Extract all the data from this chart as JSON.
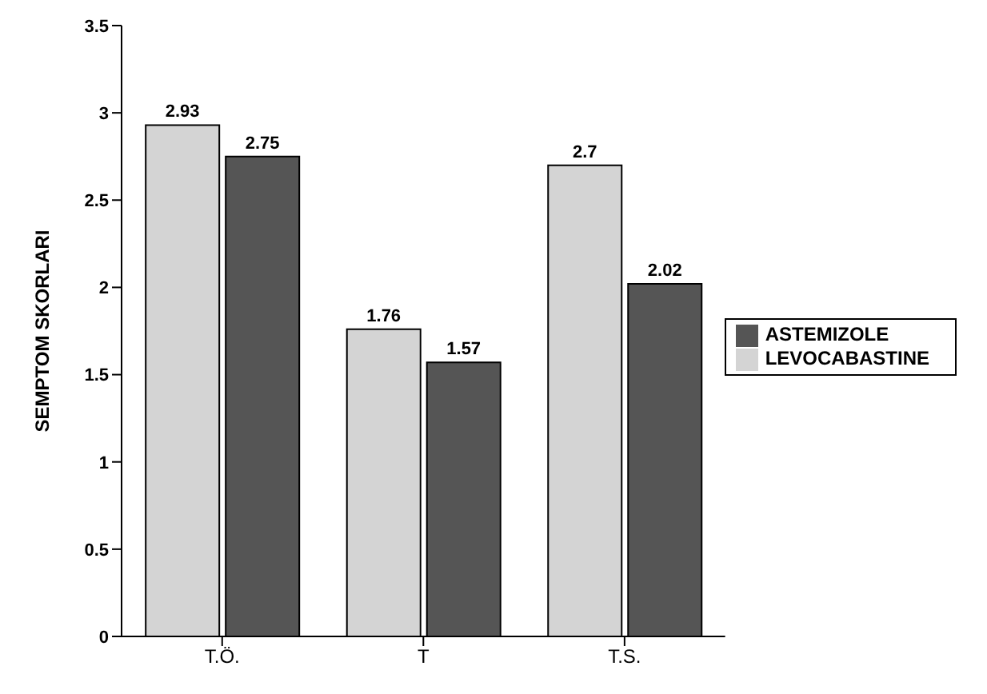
{
  "chart_data": {
    "type": "bar",
    "ylabel": "SEMPTOM SKORLARI",
    "categories": [
      "T.Ö.",
      "T",
      "T.S."
    ],
    "series": [
      {
        "name": "LEVOCABASTINE",
        "color": "#d4d4d4",
        "values": [
          2.93,
          1.76,
          2.7
        ]
      },
      {
        "name": "ASTEMIZOLE",
        "color": "#555555",
        "values": [
          2.75,
          1.57,
          2.02
        ]
      }
    ],
    "ylim": [
      0,
      3.5
    ],
    "yticks": [
      0,
      0.5,
      1,
      1.5,
      2,
      2.5,
      3,
      3.5
    ],
    "grid": false,
    "legend": "right",
    "data_labels": true
  }
}
